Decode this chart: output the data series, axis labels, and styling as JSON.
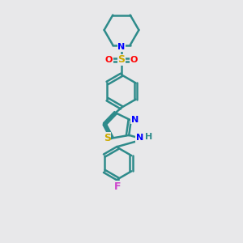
{
  "background_color": "#e8e8ea",
  "bond_color": "#2e8b8b",
  "N_color": "#0000ff",
  "S_color": "#ccaa00",
  "O_color": "#ff0000",
  "F_color": "#cc44cc",
  "NH_color": "#0000ff",
  "H_color": "#2e8b8b",
  "line_width": 1.8,
  "figsize": [
    3.0,
    3.0
  ],
  "dpi": 100,
  "xlim": [
    0,
    10
  ],
  "ylim": [
    0,
    10
  ]
}
